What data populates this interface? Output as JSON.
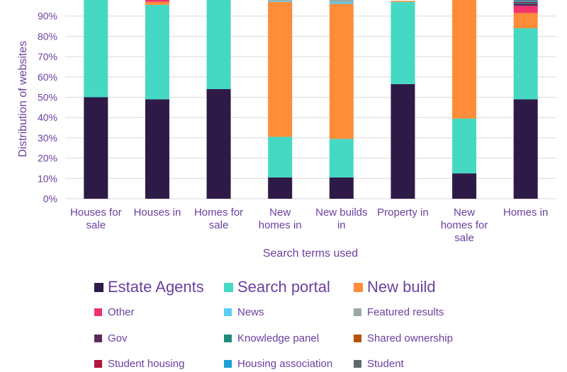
{
  "chart_data": {
    "type": "bar",
    "stacked": true,
    "ylabel": "Distribution of websites",
    "xlabel": "Search terms used",
    "ylim": [
      0,
      100
    ],
    "yticks": [
      "0%",
      "10%",
      "20%",
      "30%",
      "40%",
      "50%",
      "60%",
      "70%",
      "80%",
      "90%"
    ],
    "categories": [
      [
        "Houses for",
        "sale"
      ],
      [
        "Houses in"
      ],
      [
        "Homes for",
        "sale"
      ],
      [
        "New",
        "homes in"
      ],
      [
        "New builds",
        "in"
      ],
      [
        "Property in"
      ],
      [
        "New",
        "homes for",
        "sale"
      ],
      [
        "Homes in"
      ]
    ],
    "series": [
      {
        "name": "Estate Agents",
        "color": "#2e1a47",
        "values": [
          50,
          49,
          54,
          10.5,
          10.5,
          56.5,
          12.5,
          49
        ]
      },
      {
        "name": "Search portal",
        "color": "#45d9c4",
        "values": [
          50,
          46.5,
          46,
          20,
          19,
          40.5,
          27,
          35
        ]
      },
      {
        "name": "New build",
        "color": "#ff8c38",
        "values": [
          0,
          1.5,
          0,
          66.5,
          66.5,
          0.5,
          60.5,
          7.5
        ]
      },
      {
        "name": "Other",
        "color": "#f0326e",
        "values": [
          0,
          1.5,
          0,
          0,
          0,
          0,
          0,
          3.5
        ]
      },
      {
        "name": "News",
        "color": "#59cdf2",
        "values": [
          0,
          0,
          0,
          0.5,
          1,
          0,
          0,
          0
        ]
      },
      {
        "name": "Featured results",
        "color": "#9aa8a5",
        "values": [
          0,
          0,
          0,
          1,
          1,
          0,
          0,
          0
        ]
      },
      {
        "name": "Gov",
        "color": "#5c2a5e",
        "values": [
          0,
          0,
          0,
          0,
          0,
          0,
          0,
          1
        ]
      },
      {
        "name": "Knowledge panel",
        "color": "#1f8a7a",
        "values": [
          0,
          0,
          0,
          0,
          0,
          0,
          0,
          0.5
        ]
      },
      {
        "name": "Shared ownership",
        "color": "#b8500e",
        "values": [
          0,
          0,
          0,
          0,
          0,
          0,
          0,
          0
        ]
      },
      {
        "name": "Student housing",
        "color": "#b0163e",
        "values": [
          0,
          0,
          0,
          0,
          0,
          0,
          0,
          0.5
        ]
      },
      {
        "name": "Housing association",
        "color": "#1fa0d4",
        "values": [
          0,
          0,
          0,
          0,
          0,
          0,
          0,
          0.5
        ]
      },
      {
        "name": "Student",
        "color": "#5f6b6b",
        "values": [
          0,
          0,
          0,
          0,
          0,
          0,
          0,
          1
        ]
      }
    ]
  },
  "legend": {
    "big": [
      {
        "label": "Estate Agents",
        "color": "#2e1a47"
      },
      {
        "label": "Search portal",
        "color": "#45d9c4"
      },
      {
        "label": "New build",
        "color": "#ff8c38"
      }
    ],
    "rows": [
      [
        {
          "label": "Other",
          "color": "#f0326e"
        },
        {
          "label": "News",
          "color": "#59cdf2"
        },
        {
          "label": "Featured results",
          "color": "#9aa8a5"
        }
      ],
      [
        {
          "label": "Gov",
          "color": "#5c2a5e"
        },
        {
          "label": "Knowledge panel",
          "color": "#1f8a7a"
        },
        {
          "label": "Shared ownership",
          "color": "#b8500e"
        }
      ],
      [
        {
          "label": "Student housing",
          "color": "#b0163e"
        },
        {
          "label": "Housing association",
          "color": "#1fa0d4"
        },
        {
          "label": "Student",
          "color": "#5f6b6b"
        }
      ]
    ]
  }
}
